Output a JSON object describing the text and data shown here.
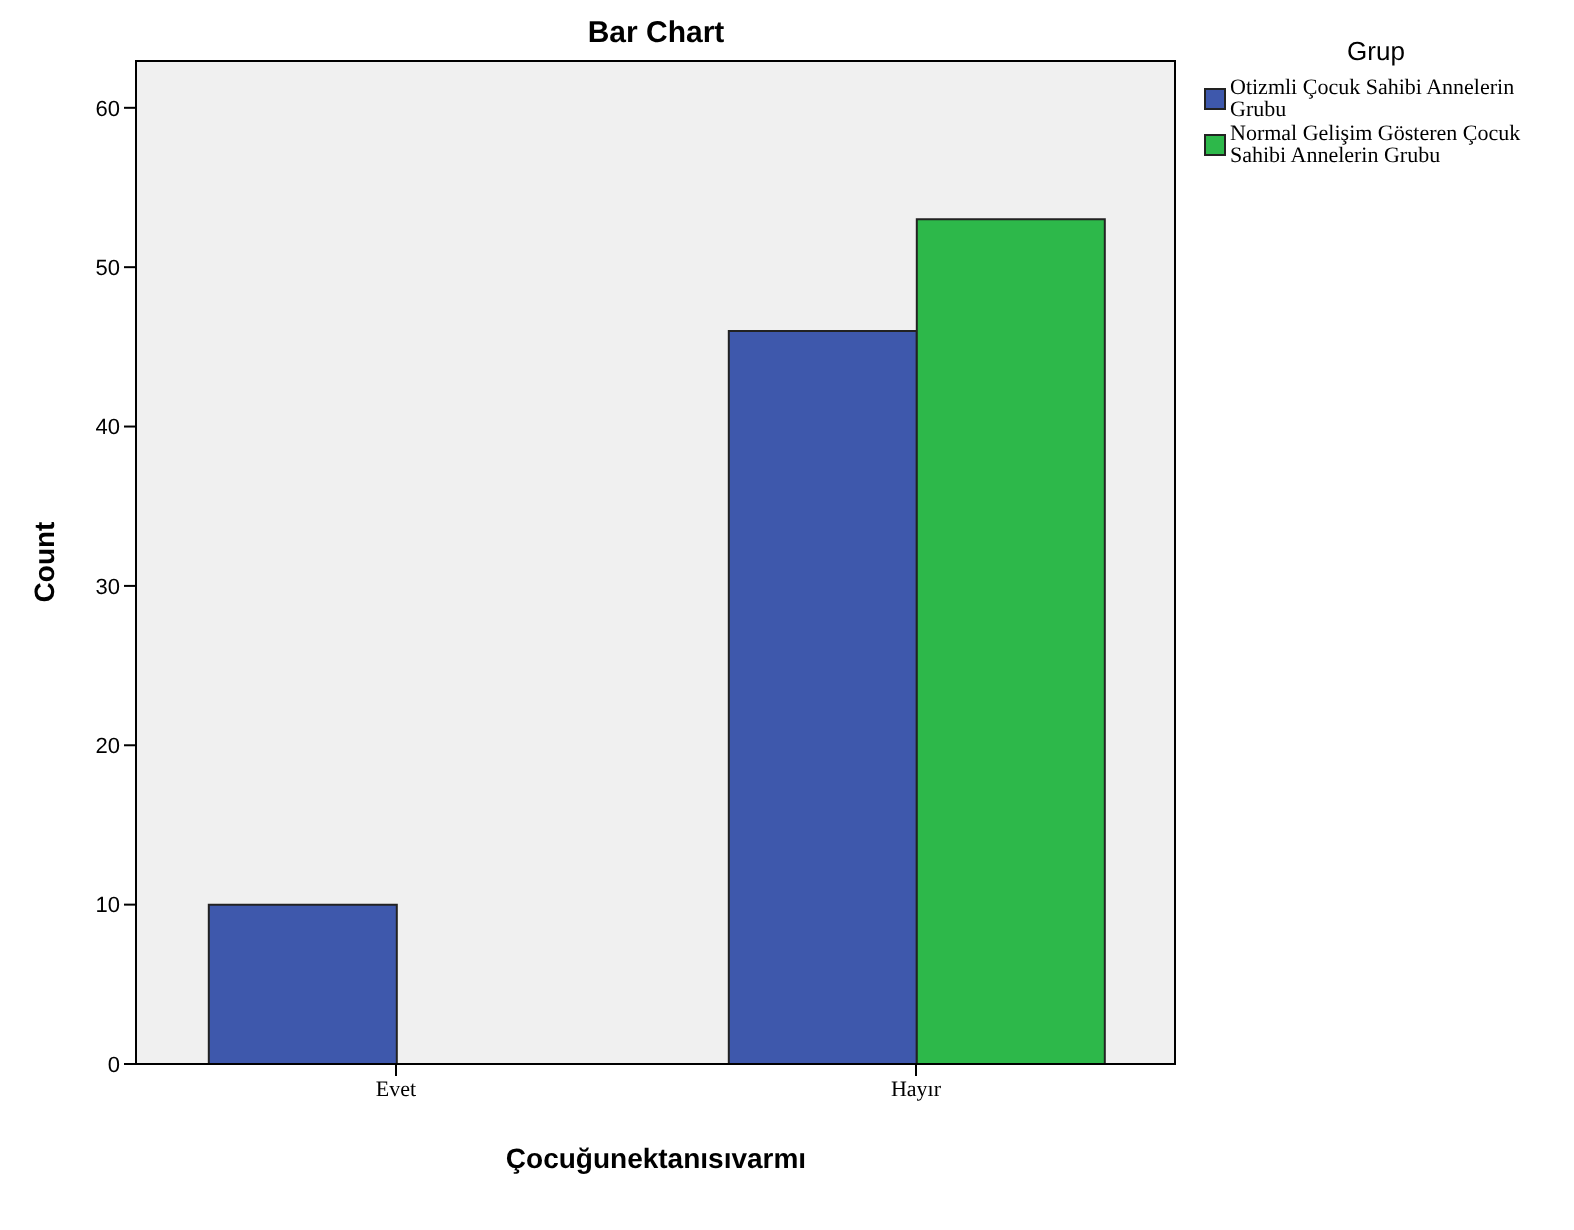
{
  "chart_data": {
    "type": "bar",
    "title": "Bar Chart",
    "xlabel": "Çocuğunektanısıvarmı",
    "ylabel": "Count",
    "legend_title": "Grup",
    "categories": [
      "Evet",
      "Hayır"
    ],
    "series": [
      {
        "name": "Otizmli Çocuk Sahibi Annelerin Grubu",
        "color": "#3e58ac",
        "values": [
          10,
          46
        ]
      },
      {
        "name": "Normal Gelişim Gösteren Çocuk Sahibi Annelerin Grubu",
        "color": "#2db84a",
        "values": [
          0,
          53
        ]
      }
    ],
    "ylim": [
      0,
      63
    ],
    "yticks": [
      0,
      10,
      20,
      30,
      40,
      50,
      60
    ],
    "grid": false,
    "legend": "top right"
  }
}
